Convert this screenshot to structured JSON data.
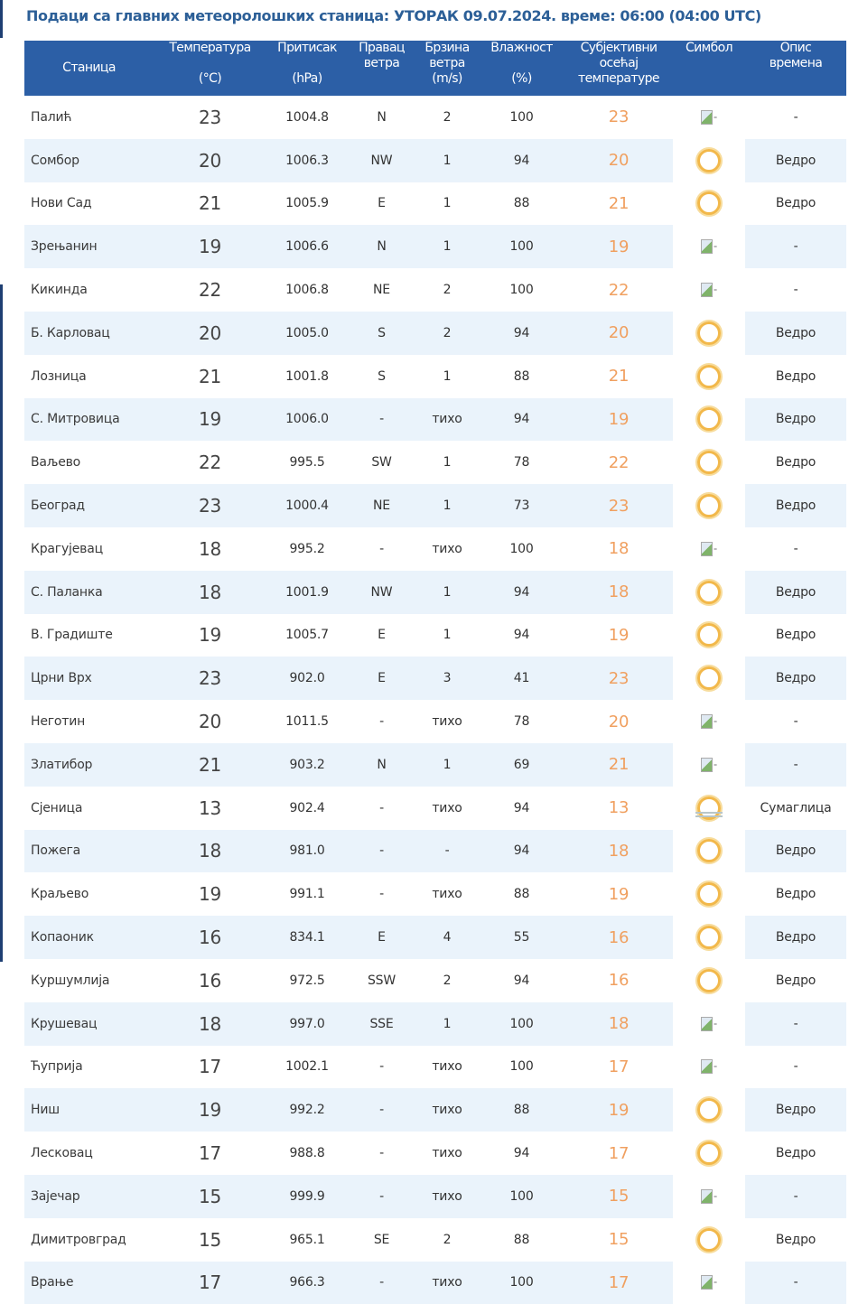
{
  "title": "Подаци са главних метеоролошких станица:  УТОРАК 09.07.2024.  време: 06:00 (04:00 UTC)",
  "headers": [
    {
      "l1": "",
      "l2": "Станица",
      "l3": ""
    },
    {
      "l1": "Температура",
      "l2": "",
      "l3": "(°C)"
    },
    {
      "l1": "Притисак",
      "l2": "",
      "l3": "(hPa)"
    },
    {
      "l1": "Правац",
      "l2": "ветра",
      "l3": ""
    },
    {
      "l1": "Брзина",
      "l2": "ветра",
      "l3": "(m/s)"
    },
    {
      "l1": "Влажност",
      "l2": "",
      "l3": "(%)"
    },
    {
      "l1": "Субјективни",
      "l2": "осећај",
      "l3": "температуре"
    },
    {
      "l1": "Симбол",
      "l2": "",
      "l3": ""
    },
    {
      "l1": "Опис",
      "l2": "времена",
      "l3": ""
    }
  ],
  "colors": {
    "header": "#2c5fa6",
    "alt_row": "#eaf3fb",
    "feels": "#f0a060"
  },
  "rows": [
    [
      "Палић",
      "23",
      "1004.8",
      "N",
      "2",
      "100",
      "23",
      "broken-image",
      "-"
    ],
    [
      "Сомбор",
      "20",
      "1006.3",
      "NW",
      "1",
      "94",
      "20",
      "sun",
      "Ведро"
    ],
    [
      "Нови Сад",
      "21",
      "1005.9",
      "E",
      "1",
      "88",
      "21",
      "sun",
      "Ведро"
    ],
    [
      "Зрењанин",
      "19",
      "1006.6",
      "N",
      "1",
      "100",
      "19",
      "broken-image",
      "-"
    ],
    [
      "Кикинда",
      "22",
      "1006.8",
      "NE",
      "2",
      "100",
      "22",
      "broken-image",
      "-"
    ],
    [
      "Б. Карловац",
      "20",
      "1005.0",
      "S",
      "2",
      "94",
      "20",
      "sun",
      "Ведро"
    ],
    [
      "Лозница",
      "21",
      "1001.8",
      "S",
      "1",
      "88",
      "21",
      "sun",
      "Ведро"
    ],
    [
      "С. Митровица",
      "19",
      "1006.0",
      "-",
      "тихо",
      "94",
      "19",
      "sun",
      "Ведро"
    ],
    [
      "Ваљево",
      "22",
      "995.5",
      "SW",
      "1",
      "78",
      "22",
      "sun",
      "Ведро"
    ],
    [
      "Београд",
      "23",
      "1000.4",
      "NE",
      "1",
      "73",
      "23",
      "sun",
      "Ведро"
    ],
    [
      "Крагујевац",
      "18",
      "995.2",
      "-",
      "тихо",
      "100",
      "18",
      "broken-image",
      "-"
    ],
    [
      "С. Паланка",
      "18",
      "1001.9",
      "NW",
      "1",
      "94",
      "18",
      "sun",
      "Ведро"
    ],
    [
      "В. Градиште",
      "19",
      "1005.7",
      "E",
      "1",
      "94",
      "19",
      "sun",
      "Ведро"
    ],
    [
      "Црни Врх",
      "23",
      "902.0",
      "E",
      "3",
      "41",
      "23",
      "sun",
      "Ведро"
    ],
    [
      "Неготин",
      "20",
      "1011.5",
      "-",
      "тихо",
      "78",
      "20",
      "broken-image",
      "-"
    ],
    [
      "Златибор",
      "21",
      "903.2",
      "N",
      "1",
      "69",
      "21",
      "broken-image",
      "-"
    ],
    [
      "Сјеница",
      "13",
      "902.4",
      "-",
      "тихо",
      "94",
      "13",
      "fog-sun",
      "Сумаглица"
    ],
    [
      "Пожега",
      "18",
      "981.0",
      "-",
      "-",
      "94",
      "18",
      "sun",
      "Ведро"
    ],
    [
      "Краљево",
      "19",
      "991.1",
      "-",
      "тихо",
      "88",
      "19",
      "sun",
      "Ведро"
    ],
    [
      "Копаоник",
      "16",
      "834.1",
      "E",
      "4",
      "55",
      "16",
      "sun",
      "Ведро"
    ],
    [
      "Куршумлија",
      "16",
      "972.5",
      "SSW",
      "2",
      "94",
      "16",
      "sun",
      "Ведро"
    ],
    [
      "Крушевац",
      "18",
      "997.0",
      "SSE",
      "1",
      "100",
      "18",
      "broken-image",
      "-"
    ],
    [
      "Ћуприја",
      "17",
      "1002.1",
      "-",
      "тихо",
      "100",
      "17",
      "broken-image",
      "-"
    ],
    [
      "Ниш",
      "19",
      "992.2",
      "-",
      "тихо",
      "88",
      "19",
      "sun",
      "Ведро"
    ],
    [
      "Лесковац",
      "17",
      "988.8",
      "-",
      "тихо",
      "94",
      "17",
      "sun",
      "Ведро"
    ],
    [
      "Зајечар",
      "15",
      "999.9",
      "-",
      "тихо",
      "100",
      "15",
      "broken-image",
      "-"
    ],
    [
      "Димитровград",
      "15",
      "965.1",
      "SE",
      "2",
      "88",
      "15",
      "sun",
      "Ведро"
    ],
    [
      "Врање",
      "17",
      "966.3",
      "-",
      "тихо",
      "100",
      "17",
      "broken-image",
      "-"
    ]
  ]
}
